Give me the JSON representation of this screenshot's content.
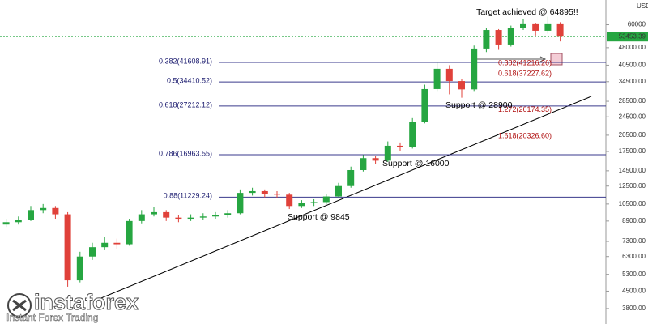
{
  "chart_data": {
    "type": "candlestick",
    "currency": "USD",
    "log_scale": true,
    "up_color": "#26a641",
    "down_color": "#e0413a",
    "ylim": [
      3270,
      76300
    ],
    "yticks": [
      {
        "value": 3800,
        "label": "3800.00"
      },
      {
        "value": 4500,
        "label": "4500.00"
      },
      {
        "value": 5300,
        "label": "5300.00"
      },
      {
        "value": 6300,
        "label": "6300.00"
      },
      {
        "value": 7300,
        "label": "7300.00"
      },
      {
        "value": 8900,
        "label": "8900.00"
      },
      {
        "value": 10500,
        "label": "10500.00"
      },
      {
        "value": 12500,
        "label": "12500.00"
      },
      {
        "value": 14500,
        "label": "14500.00"
      },
      {
        "value": 17500,
        "label": "17500.00"
      },
      {
        "value": 20500,
        "label": "20500.00"
      },
      {
        "value": 24500,
        "label": "24500.00"
      },
      {
        "value": 28500,
        "label": "28500.00"
      },
      {
        "value": 34500,
        "label": "34500.00"
      },
      {
        "value": 40500,
        "label": "40500.00"
      },
      {
        "value": 48000,
        "label": "48000.00"
      },
      60000
    ],
    "last_price": 53453.39,
    "open": [
      8600,
      8800,
      9000,
      9900,
      10100,
      9500,
      5000,
      6300,
      6900,
      7200,
      7100,
      8900,
      9500,
      9700,
      9200,
      9100,
      9200,
      9300,
      9400,
      9600,
      11700,
      11900,
      11600,
      11500,
      10300,
      10600,
      10700,
      11300,
      12500,
      14600,
      16400,
      16000,
      18500,
      18200,
      23400,
      32100,
      39100,
      34700,
      32000,
      47600,
      57000,
      49500,
      58000,
      60300,
      56600,
      60300
    ],
    "high": [
      9100,
      9300,
      10300,
      10500,
      10300,
      9700,
      6600,
      7200,
      7600,
      7500,
      9100,
      9900,
      10200,
      9900,
      9400,
      9500,
      9600,
      9700,
      9900,
      12100,
      12300,
      12100,
      11900,
      11700,
      10900,
      11000,
      11600,
      12900,
      15100,
      16900,
      16800,
      19300,
      19100,
      24200,
      33500,
      41900,
      40500,
      35500,
      49000,
      58300,
      57500,
      59500,
      63500,
      61000,
      64900,
      61500
    ],
    "low": [
      8400,
      8600,
      8900,
      9600,
      9100,
      4700,
      4900,
      6100,
      6700,
      6800,
      7000,
      8700,
      9300,
      8900,
      8800,
      8900,
      9000,
      9100,
      9200,
      9500,
      11400,
      11200,
      11100,
      10000,
      10100,
      10300,
      10500,
      11200,
      12300,
      14400,
      15500,
      15800,
      17600,
      18000,
      23000,
      31500,
      30500,
      29500,
      31500,
      46000,
      47000,
      48500,
      57000,
      54000,
      55000,
      51000
    ],
    "close": [
      8800,
      9000,
      9900,
      10100,
      9500,
      5000,
      6300,
      6900,
      7200,
      7100,
      8900,
      9500,
      9700,
      9200,
      9100,
      9200,
      9300,
      9400,
      9600,
      11700,
      11900,
      11600,
      11500,
      10300,
      10600,
      10700,
      11300,
      12500,
      14600,
      16400,
      16000,
      18500,
      18200,
      23400,
      32100,
      39100,
      34700,
      32000,
      47600,
      57000,
      49500,
      58000,
      60300,
      56600,
      60300,
      53450
    ],
    "fib_levels": [
      {
        "value": 41608.91,
        "label": "0.382(41608.91)"
      },
      {
        "value": 34410.52,
        "label": "0.5(34410.52)"
      },
      {
        "value": 27212.12,
        "label": "0.618(27212.12)"
      },
      {
        "value": 16963.55,
        "label": "0.786(16963.55)"
      },
      {
        "value": 11229.24,
        "label": "0.88(11229.24)"
      }
    ],
    "fib_projections": [
      {
        "value": 41216.26,
        "label": "0.382(41216.26)"
      },
      {
        "value": 37227.62,
        "label": "0.618(37227.62)"
      },
      {
        "value": 26174.35,
        "label": "1.272(26174.35)"
      },
      {
        "value": 20326.6,
        "label": "1.618(20326.60)"
      }
    ],
    "annotations": [
      "Target achieved @ 64895!!",
      "Support @ 28900",
      "Support @ 16000",
      "Support @ 9845"
    ],
    "logo": {
      "name": "instaforex",
      "tagline": "Instant Forex Trading"
    }
  }
}
